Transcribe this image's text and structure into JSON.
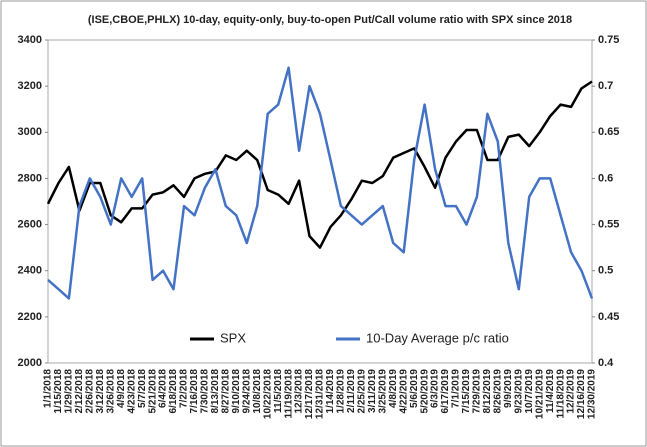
{
  "chart_data": {
    "type": "line",
    "title": "(ISE,CBOE,PHLX) 10-day, equity-only, buy-to-open Put/Call volume ratio with SPX since 2018",
    "categories": [
      "1/1/2018",
      "1/15/2018",
      "1/29/2018",
      "2/12/2018",
      "2/26/2018",
      "3/12/2018",
      "3/26/2018",
      "4/9/2018",
      "4/23/2018",
      "5/7/2018",
      "5/21/2018",
      "6/4/2018",
      "6/18/2018",
      "7/2/2018",
      "7/16/2018",
      "7/30/2018",
      "8/13/2018",
      "8/27/2018",
      "9/10/2018",
      "9/24/2018",
      "10/8/2018",
      "10/22/2018",
      "11/5/2018",
      "11/19/2018",
      "12/3/2018",
      "12/17/2018",
      "12/31/2018",
      "1/14/2019",
      "1/28/2019",
      "2/11/2019",
      "2/25/2019",
      "3/11/2019",
      "3/25/2019",
      "4/8/2019",
      "4/22/2019",
      "5/6/2019",
      "5/20/2019",
      "6/3/2019",
      "6/17/2019",
      "7/1/2019",
      "7/15/2019",
      "7/29/2019",
      "8/12/2019",
      "8/26/2019",
      "9/9/2019",
      "9/23/2019",
      "10/7/2019",
      "10/21/2019",
      "11/4/2019",
      "11/18/2019",
      "12/2/2019",
      "12/16/2019",
      "12/30/2019"
    ],
    "series": [
      {
        "name": "SPX",
        "color": "#000000",
        "values": [
          2690,
          2780,
          2850,
          2660,
          2780,
          2780,
          2640,
          2610,
          2670,
          2670,
          2730,
          2740,
          2770,
          2720,
          2800,
          2820,
          2830,
          2900,
          2880,
          2920,
          2880,
          2750,
          2730,
          2690,
          2790,
          2550,
          2500,
          2590,
          2640,
          2710,
          2790,
          2780,
          2810,
          2890,
          2910,
          2930,
          2850,
          2760,
          2890,
          2960,
          3010,
          3010,
          2880,
          2880,
          2980,
          2990,
          2940,
          3000,
          3070,
          3120,
          3110,
          3190,
          3220
        ]
      },
      {
        "name": "10-Day Average p/c ratio",
        "color": "#4472c4",
        "axis": "y2",
        "values": [
          0.49,
          0.48,
          0.47,
          0.57,
          0.6,
          0.58,
          0.55,
          0.6,
          0.58,
          0.6,
          0.49,
          0.5,
          0.48,
          0.57,
          0.56,
          0.59,
          0.61,
          0.57,
          0.56,
          0.53,
          0.57,
          0.67,
          0.68,
          0.72,
          0.63,
          0.7,
          0.67,
          0.62,
          0.57,
          0.56,
          0.55,
          0.56,
          0.57,
          0.53,
          0.52,
          0.62,
          0.68,
          0.61,
          0.57,
          0.57,
          0.55,
          0.58,
          0.67,
          0.64,
          0.53,
          0.48,
          0.58,
          0.6,
          0.6,
          0.56,
          0.52,
          0.5,
          0.47
        ]
      }
    ],
    "ylim": [
      2000,
      3400
    ],
    "yticks": [
      2000,
      2200,
      2400,
      2600,
      2800,
      3000,
      3200,
      3400
    ],
    "y2lim": [
      0.4,
      0.75
    ],
    "y2ticks": [
      0.4,
      0.45,
      0.5,
      0.55,
      0.6,
      0.65,
      0.7,
      0.75
    ],
    "legend": "bottom",
    "grid": false
  }
}
